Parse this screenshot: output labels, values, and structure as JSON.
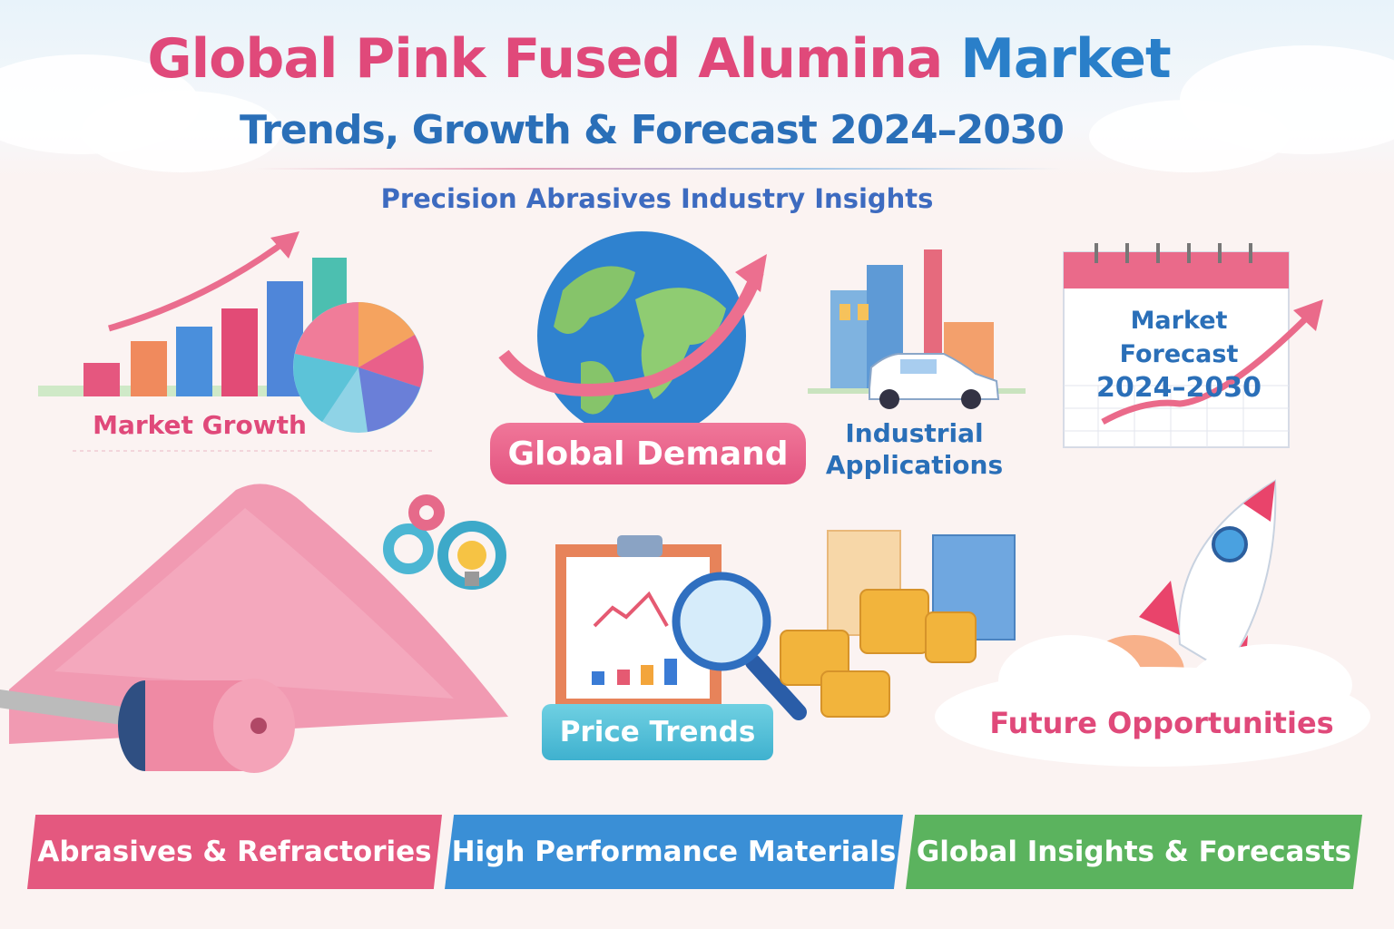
{
  "header": {
    "title_part1": "Global Pink Fused Alumina",
    "title_part2": "Market",
    "subtitle": "Trends, Growth & Forecast 2024–2030",
    "tagline": "Precision Abrasives Industry Insights"
  },
  "sections": {
    "market_growth": "Market Growth",
    "global_demand": "Global Demand",
    "industrial_line1": "Industrial",
    "industrial_line2": "Applications",
    "forecast_line1": "Market Forecast",
    "forecast_line2": "2024–2030",
    "price_trends": "Price Trends",
    "future": "Future Opportunities"
  },
  "banners": [
    {
      "label": "Abrasives & Refractories",
      "color": "#e4587f"
    },
    {
      "label": "High Performance Materials",
      "color": "#3a8fd6"
    },
    {
      "label": "Global Insights & Forecasts",
      "color": "#5bb35e"
    }
  ],
  "colors": {
    "pink": "#e0497a",
    "blue": "#2a7fc9",
    "teal": "#4cbfd6"
  }
}
